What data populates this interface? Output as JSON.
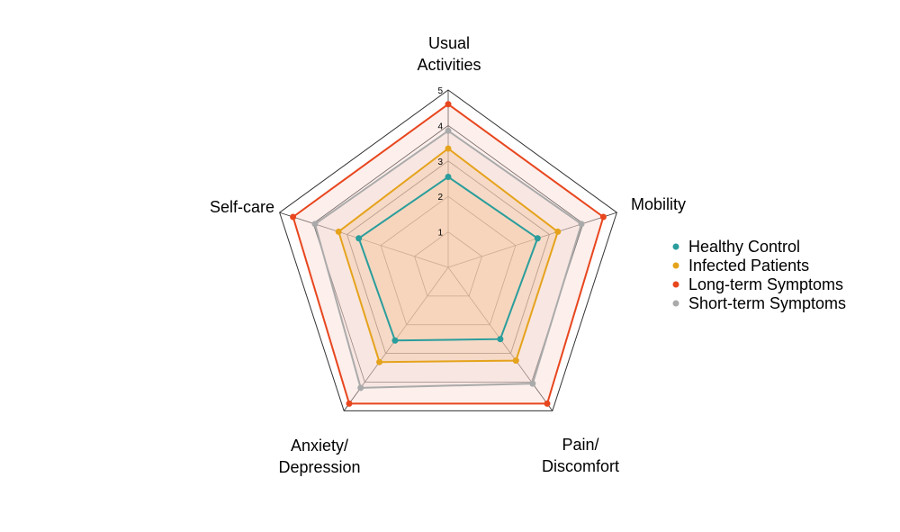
{
  "chart_data": {
    "type": "radar",
    "title": "",
    "axes": [
      "Usual Activities",
      "Mobility",
      "Pain/ Discomfort",
      "Anxiety/ Depression",
      "Self-care"
    ],
    "axis_label_lines": [
      [
        "Usual",
        "Activities"
      ],
      [
        "Mobility"
      ],
      [
        "Pain/",
        "Discomfort"
      ],
      [
        "Anxiety/",
        "Depression"
      ],
      [
        "Self-care"
      ]
    ],
    "range": [
      0,
      5
    ],
    "ticks": [
      "1",
      "2",
      "3",
      "4",
      "5"
    ],
    "grid": true,
    "legend_position": "right",
    "series": [
      {
        "name": "Healthy Control",
        "color": "#2a9d9c",
        "fill": "#f7c9a6",
        "values": [
          2.55,
          2.65,
          2.5,
          2.55,
          2.65
        ]
      },
      {
        "name": "Infected Patients",
        "color": "#e5a31c",
        "fill": "#f4c08f",
        "values": [
          3.35,
          3.25,
          3.25,
          3.3,
          3.25
        ]
      },
      {
        "name": "Long-term Symptoms",
        "color": "#e8461e",
        "fill": "#f7cdc3",
        "values": [
          4.6,
          4.6,
          4.75,
          4.75,
          4.6
        ]
      },
      {
        "name": "Short-term Symptoms",
        "color": "#aaaaaa",
        "fill": "#f0d5cc",
        "values": [
          3.85,
          3.95,
          4.05,
          4.2,
          3.95
        ]
      }
    ]
  }
}
